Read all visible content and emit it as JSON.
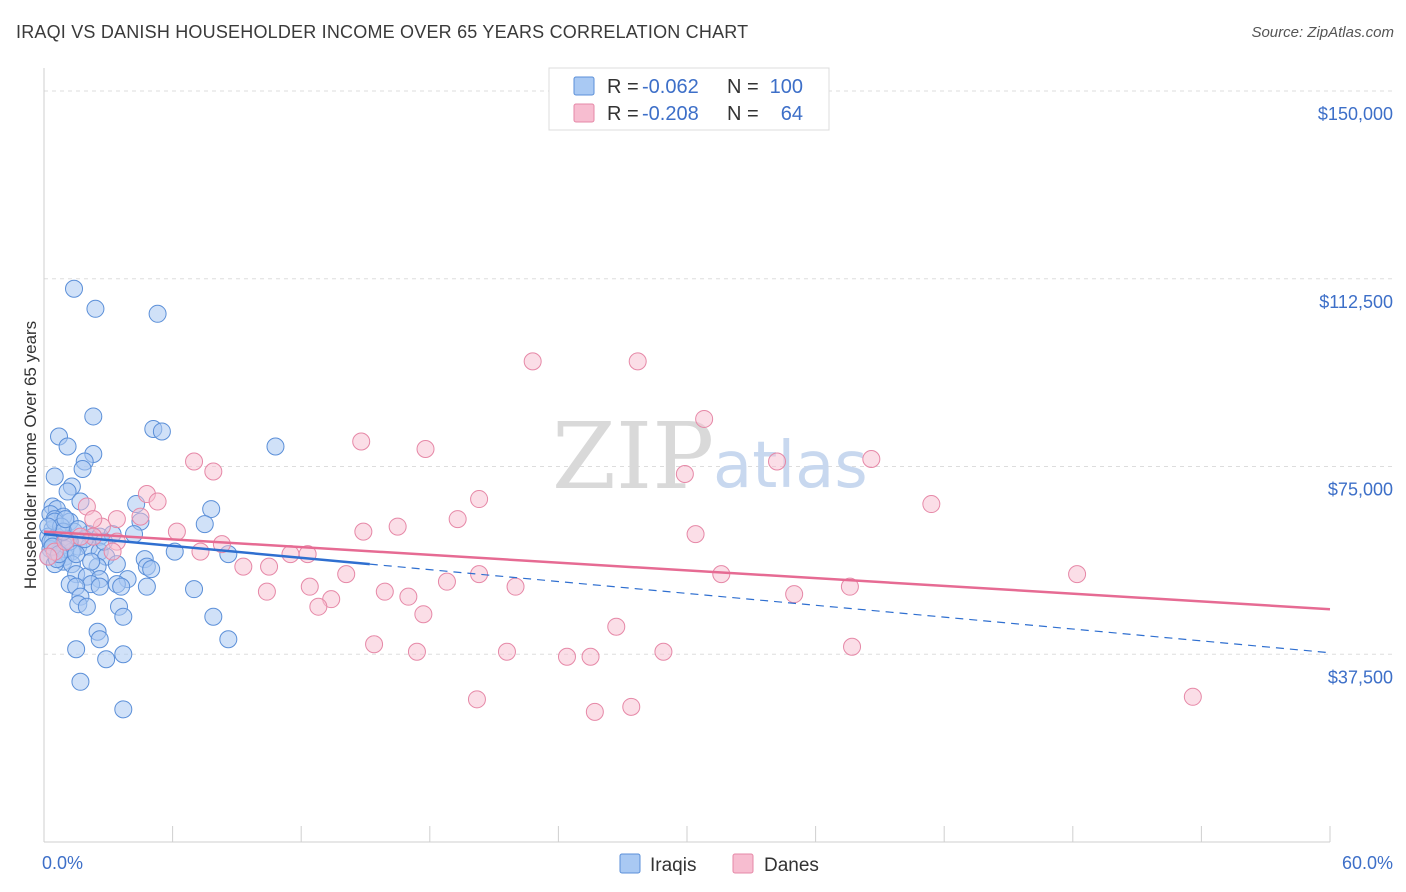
{
  "title": "IRAQI VS DANISH HOUSEHOLDER INCOME OVER 65 YEARS CORRELATION CHART",
  "source": "Source: ZipAtlas.com",
  "watermark": {
    "part1": "ZIP",
    "part2": "atlas"
  },
  "colors": {
    "iraqi_fill": "#a9c9f3",
    "iraqi_stroke": "#5b8fd8",
    "iraqi_line": "#2f6fd0",
    "danish_fill": "#f7bdd0",
    "danish_stroke": "#e688a7",
    "danish_line": "#e66b93",
    "tick_text": "#3d6fc8",
    "grid": "#dddddd"
  },
  "legend": {
    "r_label": "R =",
    "n_label": "N =",
    "iraqi": {
      "r": "-0.062",
      "n": "100"
    },
    "danish": {
      "r": "-0.208",
      "n": "64"
    }
  },
  "bottom_legend": [
    "Iraqis",
    "Danes"
  ],
  "chart_data": {
    "type": "scatter",
    "title": "IRAQI VS DANISH HOUSEHOLDER INCOME OVER 65 YEARS CORRELATION CHART",
    "xlabel": "",
    "ylabel": "Householder Income Over 65 years",
    "xlim": [
      0,
      60
    ],
    "ylim": [
      0,
      153000
    ],
    "x_tick_labels": [
      "0.0%",
      "60.0%"
    ],
    "y_ticks": [
      37500,
      75000,
      112500,
      150000
    ],
    "y_tick_labels": [
      "$37,500",
      "$75,000",
      "$112,500",
      "$150,000"
    ],
    "series": [
      {
        "name": "Iraqis",
        "r": -0.062,
        "n": 100,
        "trend_solid": [
          [
            0,
            61500
          ],
          [
            15.2,
            55500
          ]
        ],
        "trend_dashed": [
          [
            15.2,
            55500
          ],
          [
            60,
            37800
          ]
        ],
        "points": [
          [
            1.4,
            110500
          ],
          [
            2.4,
            106500
          ],
          [
            5.3,
            105500
          ],
          [
            2.3,
            85000
          ],
          [
            5.1,
            82500
          ],
          [
            5.5,
            82000
          ],
          [
            0.7,
            81000
          ],
          [
            1.1,
            79000
          ],
          [
            2.3,
            77500
          ],
          [
            10.8,
            79000
          ],
          [
            1.9,
            76000
          ],
          [
            1.8,
            74500
          ],
          [
            0.5,
            73000
          ],
          [
            1.3,
            71000
          ],
          [
            1.1,
            70000
          ],
          [
            1.7,
            68000
          ],
          [
            4.3,
            67500
          ],
          [
            0.4,
            67000
          ],
          [
            0.6,
            66500
          ],
          [
            7.8,
            66500
          ],
          [
            0.3,
            65500
          ],
          [
            0.9,
            65000
          ],
          [
            0.5,
            64500
          ],
          [
            1.2,
            64000
          ],
          [
            4.5,
            64000
          ],
          [
            7.5,
            63500
          ],
          [
            0.4,
            62500
          ],
          [
            0.8,
            62000
          ],
          [
            1.4,
            62000
          ],
          [
            2.1,
            61500
          ],
          [
            0.2,
            61000
          ],
          [
            0.6,
            61000
          ],
          [
            1.1,
            60500
          ],
          [
            2.3,
            61000
          ],
          [
            2.6,
            61000
          ],
          [
            3.2,
            61500
          ],
          [
            4.2,
            61500
          ],
          [
            0.4,
            60000
          ],
          [
            0.9,
            59500
          ],
          [
            1.6,
            59000
          ],
          [
            2.1,
            59000
          ],
          [
            0.3,
            58500
          ],
          [
            0.7,
            58000
          ],
          [
            1.3,
            58000
          ],
          [
            2.6,
            58000
          ],
          [
            6.1,
            58000
          ],
          [
            8.6,
            57500
          ],
          [
            0.2,
            57000
          ],
          [
            1.0,
            57000
          ],
          [
            2.9,
            57000
          ],
          [
            4.7,
            56500
          ],
          [
            0.9,
            56000
          ],
          [
            1.3,
            55500
          ],
          [
            0.5,
            55500
          ],
          [
            3.4,
            55500
          ],
          [
            2.5,
            55000
          ],
          [
            4.8,
            55000
          ],
          [
            5.0,
            54500
          ],
          [
            1.5,
            53500
          ],
          [
            2.0,
            53000
          ],
          [
            2.6,
            52500
          ],
          [
            3.9,
            52500
          ],
          [
            1.2,
            51500
          ],
          [
            2.2,
            51500
          ],
          [
            3.4,
            51500
          ],
          [
            3.6,
            51000
          ],
          [
            1.5,
            51000
          ],
          [
            2.6,
            51000
          ],
          [
            4.8,
            51000
          ],
          [
            7.0,
            50500
          ],
          [
            1.7,
            49000
          ],
          [
            1.6,
            47500
          ],
          [
            2.0,
            47000
          ],
          [
            3.5,
            47000
          ],
          [
            3.7,
            45000
          ],
          [
            7.9,
            45000
          ],
          [
            2.5,
            42000
          ],
          [
            2.6,
            40500
          ],
          [
            8.6,
            40500
          ],
          [
            1.5,
            38500
          ],
          [
            3.7,
            37500
          ],
          [
            2.9,
            36500
          ],
          [
            1.7,
            32000
          ],
          [
            3.7,
            26500
          ],
          [
            0.5,
            64000
          ],
          [
            0.8,
            63000
          ],
          [
            1.0,
            58500
          ],
          [
            0.3,
            60000
          ],
          [
            0.6,
            56500
          ],
          [
            1.9,
            60500
          ],
          [
            1.2,
            60000
          ],
          [
            0.4,
            59000
          ],
          [
            1.5,
            57500
          ],
          [
            2.8,
            60000
          ],
          [
            0.9,
            62000
          ],
          [
            0.2,
            63000
          ],
          [
            1.0,
            64500
          ],
          [
            1.6,
            62500
          ],
          [
            0.7,
            57500
          ],
          [
            2.2,
            56000
          ]
        ]
      },
      {
        "name": "Danes",
        "r": -0.208,
        "n": 64,
        "trend": [
          [
            0,
            62000
          ],
          [
            60,
            46500
          ]
        ],
        "points": [
          [
            22.8,
            96000
          ],
          [
            27.7,
            96000
          ],
          [
            30.8,
            84500
          ],
          [
            14.8,
            80000
          ],
          [
            17.8,
            78500
          ],
          [
            7.0,
            76000
          ],
          [
            34.2,
            76000
          ],
          [
            38.6,
            76500
          ],
          [
            7.9,
            74000
          ],
          [
            29.9,
            73500
          ],
          [
            4.8,
            69500
          ],
          [
            5.3,
            68000
          ],
          [
            20.3,
            68500
          ],
          [
            41.4,
            67500
          ],
          [
            2.0,
            67000
          ],
          [
            4.5,
            65000
          ],
          [
            19.3,
            64500
          ],
          [
            3.4,
            64500
          ],
          [
            16.5,
            63000
          ],
          [
            2.7,
            63000
          ],
          [
            6.2,
            62000
          ],
          [
            14.9,
            62000
          ],
          [
            30.4,
            61500
          ],
          [
            2.3,
            61000
          ],
          [
            3.4,
            60000
          ],
          [
            1.7,
            61000
          ],
          [
            8.3,
            59500
          ],
          [
            0.5,
            58000
          ],
          [
            3.2,
            58000
          ],
          [
            7.3,
            58000
          ],
          [
            11.5,
            57500
          ],
          [
            12.3,
            57500
          ],
          [
            9.3,
            55000
          ],
          [
            10.5,
            55000
          ],
          [
            14.1,
            53500
          ],
          [
            20.3,
            53500
          ],
          [
            31.6,
            53500
          ],
          [
            48.2,
            53500
          ],
          [
            18.8,
            52000
          ],
          [
            22.0,
            51000
          ],
          [
            12.4,
            51000
          ],
          [
            37.6,
            51000
          ],
          [
            10.4,
            50000
          ],
          [
            15.9,
            50000
          ],
          [
            17.0,
            49000
          ],
          [
            13.4,
            48500
          ],
          [
            35.0,
            49500
          ],
          [
            12.8,
            47000
          ],
          [
            17.7,
            45500
          ],
          [
            26.7,
            43000
          ],
          [
            15.4,
            39500
          ],
          [
            17.4,
            38000
          ],
          [
            21.6,
            38000
          ],
          [
            24.4,
            37000
          ],
          [
            25.5,
            37000
          ],
          [
            28.9,
            38000
          ],
          [
            37.7,
            39000
          ],
          [
            20.2,
            28500
          ],
          [
            25.7,
            26000
          ],
          [
            27.4,
            27000
          ],
          [
            53.6,
            29000
          ],
          [
            0.2,
            57000
          ],
          [
            1.0,
            60000
          ],
          [
            2.3,
            64500
          ]
        ]
      }
    ]
  }
}
